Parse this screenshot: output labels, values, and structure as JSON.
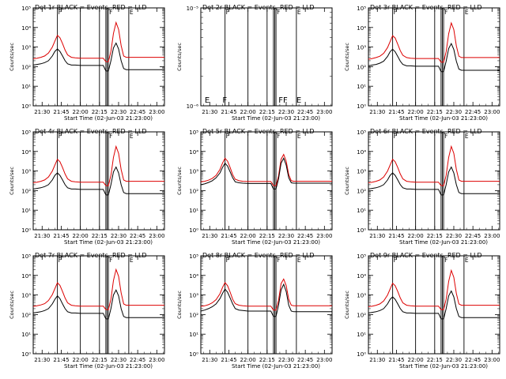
{
  "chart_data": {
    "type": "line",
    "layout": "3x3 grid of small multiples",
    "y_scale": "log",
    "ylim": [
      1,
      100000
    ],
    "x_range": [
      "21:23",
      "23:06"
    ],
    "x_ticks": [
      "21:30",
      "21:45",
      "22:00",
      "22:15",
      "22:30",
      "22:45",
      "23:00"
    ],
    "y_ticks": [
      "10⁰",
      "10¹",
      "10²",
      "10³",
      "10⁴",
      "10⁵"
    ],
    "xlabel": "Start Time (02-Jun-03 21:23:00)",
    "ylabel": "Counts/sec",
    "colors": {
      "events": "#000000",
      "lld": "#dd0000"
    },
    "x_times": [
      "21:23",
      "21:26",
      "21:29",
      "21:32",
      "21:35",
      "21:38",
      "21:40",
      "21:42",
      "21:44",
      "21:46",
      "21:48",
      "21:50",
      "21:53",
      "21:56",
      "22:00",
      "22:05",
      "22:10",
      "22:15",
      "22:18",
      "22:20",
      "22:22",
      "22:24",
      "22:26",
      "22:28",
      "22:30",
      "22:32",
      "22:34",
      "22:36",
      "22:38",
      "22:40",
      "22:45",
      "22:50",
      "22:55",
      "23:00",
      "23:06"
    ],
    "panels": [
      {
        "title": "Det 1r BLACK = Events, RED = LLD",
        "events": [
          120,
          130,
          140,
          160,
          200,
          350,
          600,
          800,
          600,
          350,
          200,
          140,
          120,
          120,
          115,
          115,
          115,
          115,
          115,
          60,
          60,
          200,
          900,
          1600,
          800,
          200,
          80,
          70,
          70,
          70,
          70,
          70,
          70,
          70,
          70
        ],
        "lld": [
          250,
          270,
          300,
          350,
          500,
          1000,
          2000,
          4000,
          3000,
          1500,
          700,
          400,
          300,
          280,
          270,
          270,
          270,
          270,
          270,
          180,
          180,
          600,
          5000,
          18000,
          8000,
          1200,
          350,
          300,
          300,
          300,
          300,
          300,
          300,
          300,
          300
        ],
        "vlines": [
          "21:42",
          "22:00",
          "22:15",
          "22:20",
          "22:21",
          "22:22",
          "22:38"
        ],
        "markers": [
          {
            "time": "21:42",
            "text": "F"
          },
          {
            "time": "22:22",
            "text": "F"
          },
          {
            "time": "22:38",
            "text": "E"
          }
        ]
      },
      {
        "title": "Det 2r BLACK = Events, RED = LLD",
        "events": [],
        "lld": [],
        "ylim": [
          1e-06,
          1e-05
        ],
        "y_ticks": [
          "10⁻⁶",
          "10⁻⁵"
        ],
        "bottom_text": [
          {
            "time": "21:26",
            "text": "E"
          },
          {
            "time": "21:40",
            "text": "F"
          },
          {
            "time": "22:24",
            "text": "FF"
          },
          {
            "time": "22:38",
            "text": "E"
          }
        ],
        "vlines": [
          "21:42",
          "22:00",
          "22:15",
          "22:20",
          "22:21",
          "22:22",
          "22:38"
        ],
        "markers": [
          {
            "time": "21:42",
            "text": "F"
          },
          {
            "time": "22:22",
            "text": "F"
          },
          {
            "time": "22:38",
            "text": "E"
          }
        ]
      },
      {
        "title": "Det 3r BLACK = Events, RED = LLD",
        "events": [
          110,
          120,
          130,
          150,
          190,
          330,
          580,
          780,
          580,
          330,
          190,
          130,
          110,
          110,
          105,
          105,
          105,
          105,
          105,
          55,
          55,
          190,
          850,
          1500,
          750,
          190,
          75,
          65,
          65,
          65,
          65,
          65,
          65,
          65,
          65
        ],
        "lld": [
          240,
          260,
          290,
          340,
          480,
          950,
          1900,
          3800,
          2900,
          1400,
          650,
          380,
          290,
          270,
          260,
          260,
          260,
          260,
          260,
          170,
          170,
          580,
          4800,
          17000,
          7800,
          1150,
          340,
          290,
          290,
          290,
          290,
          290,
          290,
          290,
          290
        ],
        "vlines": [
          "21:42",
          "22:00",
          "22:15",
          "22:20",
          "22:21",
          "22:22",
          "22:38"
        ],
        "markers": [
          {
            "time": "21:42",
            "text": "F"
          },
          {
            "time": "22:22",
            "text": "F"
          },
          {
            "time": "22:38",
            "text": "E"
          }
        ]
      },
      {
        "title": "Det 4r BLACK = Events, RED = LLD",
        "events": [
          120,
          130,
          140,
          160,
          200,
          350,
          600,
          800,
          600,
          350,
          200,
          140,
          120,
          120,
          115,
          115,
          115,
          115,
          115,
          60,
          60,
          200,
          900,
          1600,
          800,
          200,
          80,
          70,
          70,
          70,
          70,
          70,
          70,
          70,
          70
        ],
        "lld": [
          250,
          270,
          300,
          350,
          500,
          1000,
          2000,
          4000,
          3000,
          1500,
          700,
          400,
          300,
          280,
          270,
          270,
          270,
          270,
          270,
          180,
          180,
          600,
          5000,
          18000,
          8000,
          1200,
          350,
          300,
          300,
          300,
          300,
          300,
          300,
          300,
          300
        ],
        "vlines": [
          "21:42",
          "22:00",
          "22:15",
          "22:20",
          "22:21",
          "22:22",
          "22:38"
        ],
        "markers": [
          {
            "time": "21:42",
            "text": "F"
          },
          {
            "time": "22:22",
            "text": "F"
          },
          {
            "time": "22:38",
            "text": "E"
          }
        ]
      },
      {
        "title": "Det 5r BLACK = Events, RED = LLD",
        "events": [
          200,
          220,
          260,
          320,
          450,
          800,
          1500,
          2500,
          1800,
          900,
          450,
          280,
          250,
          240,
          230,
          230,
          230,
          230,
          230,
          120,
          120,
          400,
          2500,
          4500,
          2000,
          450,
          250,
          240,
          240,
          240,
          240,
          240,
          240,
          240,
          240
        ],
        "lld": [
          280,
          300,
          340,
          420,
          600,
          1200,
          2500,
          4500,
          3200,
          1500,
          650,
          380,
          320,
          300,
          290,
          290,
          290,
          290,
          290,
          180,
          180,
          550,
          4000,
          7000,
          3200,
          650,
          320,
          300,
          300,
          300,
          300,
          300,
          300,
          300,
          300
        ],
        "vlines": [
          "21:42",
          "22:00",
          "22:15",
          "22:20",
          "22:21",
          "22:22",
          "22:38"
        ],
        "markers": [
          {
            "time": "21:42",
            "text": "F"
          },
          {
            "time": "22:22",
            "text": "F"
          },
          {
            "time": "22:38",
            "text": "E"
          }
        ]
      },
      {
        "title": "Det 6r BLACK = Events, RED = LLD",
        "events": [
          120,
          130,
          140,
          160,
          200,
          350,
          600,
          800,
          600,
          350,
          200,
          140,
          120,
          120,
          115,
          115,
          115,
          115,
          115,
          60,
          60,
          200,
          900,
          1600,
          800,
          200,
          80,
          70,
          70,
          70,
          70,
          70,
          70,
          70,
          70
        ],
        "lld": [
          250,
          270,
          300,
          350,
          500,
          1000,
          2000,
          4000,
          3000,
          1500,
          700,
          400,
          300,
          280,
          270,
          270,
          270,
          270,
          270,
          180,
          180,
          600,
          5000,
          18000,
          8000,
          1200,
          350,
          300,
          300,
          300,
          300,
          300,
          300,
          300,
          300
        ],
        "vlines": [
          "21:42",
          "22:00",
          "22:15",
          "22:20",
          "22:21",
          "22:22",
          "22:38"
        ],
        "markers": [
          {
            "time": "21:42",
            "text": "F"
          },
          {
            "time": "22:22",
            "text": "F"
          },
          {
            "time": "22:38",
            "text": "E"
          }
        ]
      },
      {
        "title": "Det 7r BLACK = Events, RED = LLD",
        "events": [
          120,
          130,
          140,
          160,
          200,
          350,
          600,
          900,
          650,
          350,
          200,
          140,
          120,
          120,
          115,
          115,
          115,
          115,
          115,
          60,
          60,
          200,
          1000,
          1800,
          900,
          200,
          80,
          70,
          70,
          70,
          70,
          70,
          70,
          70,
          70
        ],
        "lld": [
          260,
          280,
          310,
          360,
          520,
          1050,
          2100,
          4200,
          3100,
          1500,
          700,
          400,
          300,
          280,
          270,
          270,
          270,
          270,
          270,
          180,
          180,
          600,
          5500,
          20000,
          9000,
          1300,
          350,
          300,
          300,
          300,
          300,
          300,
          300,
          300,
          300
        ],
        "vlines": [
          "21:42",
          "22:00",
          "22:15",
          "22:20",
          "22:21",
          "22:22",
          "22:38"
        ],
        "markers": [
          {
            "time": "21:42",
            "text": "F"
          },
          {
            "time": "22:22",
            "text": "F"
          },
          {
            "time": "22:38",
            "text": "E"
          }
        ]
      },
      {
        "title": "Det 8r BLACK = Events, RED = LLD",
        "events": [
          150,
          170,
          200,
          250,
          350,
          650,
          1200,
          2000,
          1400,
          700,
          350,
          200,
          170,
          160,
          150,
          150,
          150,
          150,
          150,
          80,
          80,
          300,
          1800,
          3500,
          1500,
          300,
          150,
          140,
          140,
          140,
          140,
          140,
          140,
          140,
          140
        ],
        "lld": [
          260,
          280,
          320,
          400,
          580,
          1150,
          2400,
          4300,
          3000,
          1400,
          600,
          360,
          300,
          280,
          270,
          270,
          270,
          270,
          270,
          170,
          170,
          520,
          3800,
          6500,
          3000,
          600,
          300,
          280,
          280,
          280,
          280,
          280,
          280,
          280,
          280
        ],
        "vlines": [
          "21:42",
          "22:00",
          "22:15",
          "22:20",
          "22:21",
          "22:22",
          "22:38"
        ],
        "markers": [
          {
            "time": "21:42",
            "text": "F"
          },
          {
            "time": "22:22",
            "text": "F"
          },
          {
            "time": "22:38",
            "text": "E"
          }
        ]
      },
      {
        "title": "Det 9r BLACK = Events, RED = LLD",
        "events": [
          120,
          130,
          140,
          160,
          200,
          350,
          600,
          800,
          600,
          350,
          200,
          140,
          120,
          120,
          115,
          115,
          115,
          115,
          115,
          60,
          60,
          200,
          900,
          1600,
          800,
          200,
          80,
          70,
          70,
          70,
          70,
          70,
          70,
          70,
          70
        ],
        "lld": [
          250,
          270,
          300,
          350,
          500,
          1000,
          2000,
          4000,
          3000,
          1500,
          700,
          400,
          300,
          280,
          270,
          270,
          270,
          270,
          270,
          180,
          180,
          600,
          5000,
          18000,
          8000,
          1200,
          350,
          300,
          300,
          300,
          300,
          300,
          300,
          300,
          300
        ],
        "vlines": [
          "21:42",
          "22:00",
          "22:15",
          "22:20",
          "22:21",
          "22:22",
          "22:38"
        ],
        "markers": [
          {
            "time": "21:42",
            "text": "F"
          },
          {
            "time": "22:22",
            "text": "F"
          },
          {
            "time": "22:38",
            "text": "E"
          }
        ]
      }
    ]
  }
}
